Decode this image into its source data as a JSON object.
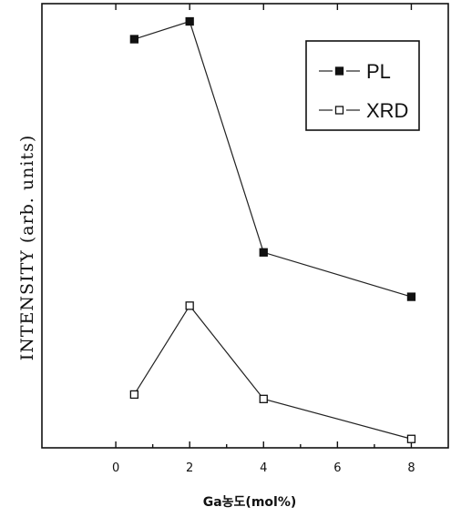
{
  "chart_data": {
    "type": "line",
    "title": "",
    "xlabel": "Ga농도(mol%)",
    "ylabel": "INTENSITY (arb. units)",
    "xlim": [
      -2,
      9
    ],
    "ylim": [
      0,
      100
    ],
    "x_ticks": [
      0,
      2,
      4,
      6,
      8
    ],
    "grid": false,
    "legend_position": "top-right",
    "series": [
      {
        "name": "PL",
        "marker": "filled-square",
        "color": "#111111",
        "x": [
          0.5,
          2,
          4,
          8
        ],
        "y": [
          92,
          96,
          44,
          34
        ]
      },
      {
        "name": "XRD",
        "marker": "open-square",
        "color": "#111111",
        "x": [
          0.5,
          2,
          4,
          8
        ],
        "y": [
          12,
          32,
          11,
          2
        ]
      }
    ]
  }
}
